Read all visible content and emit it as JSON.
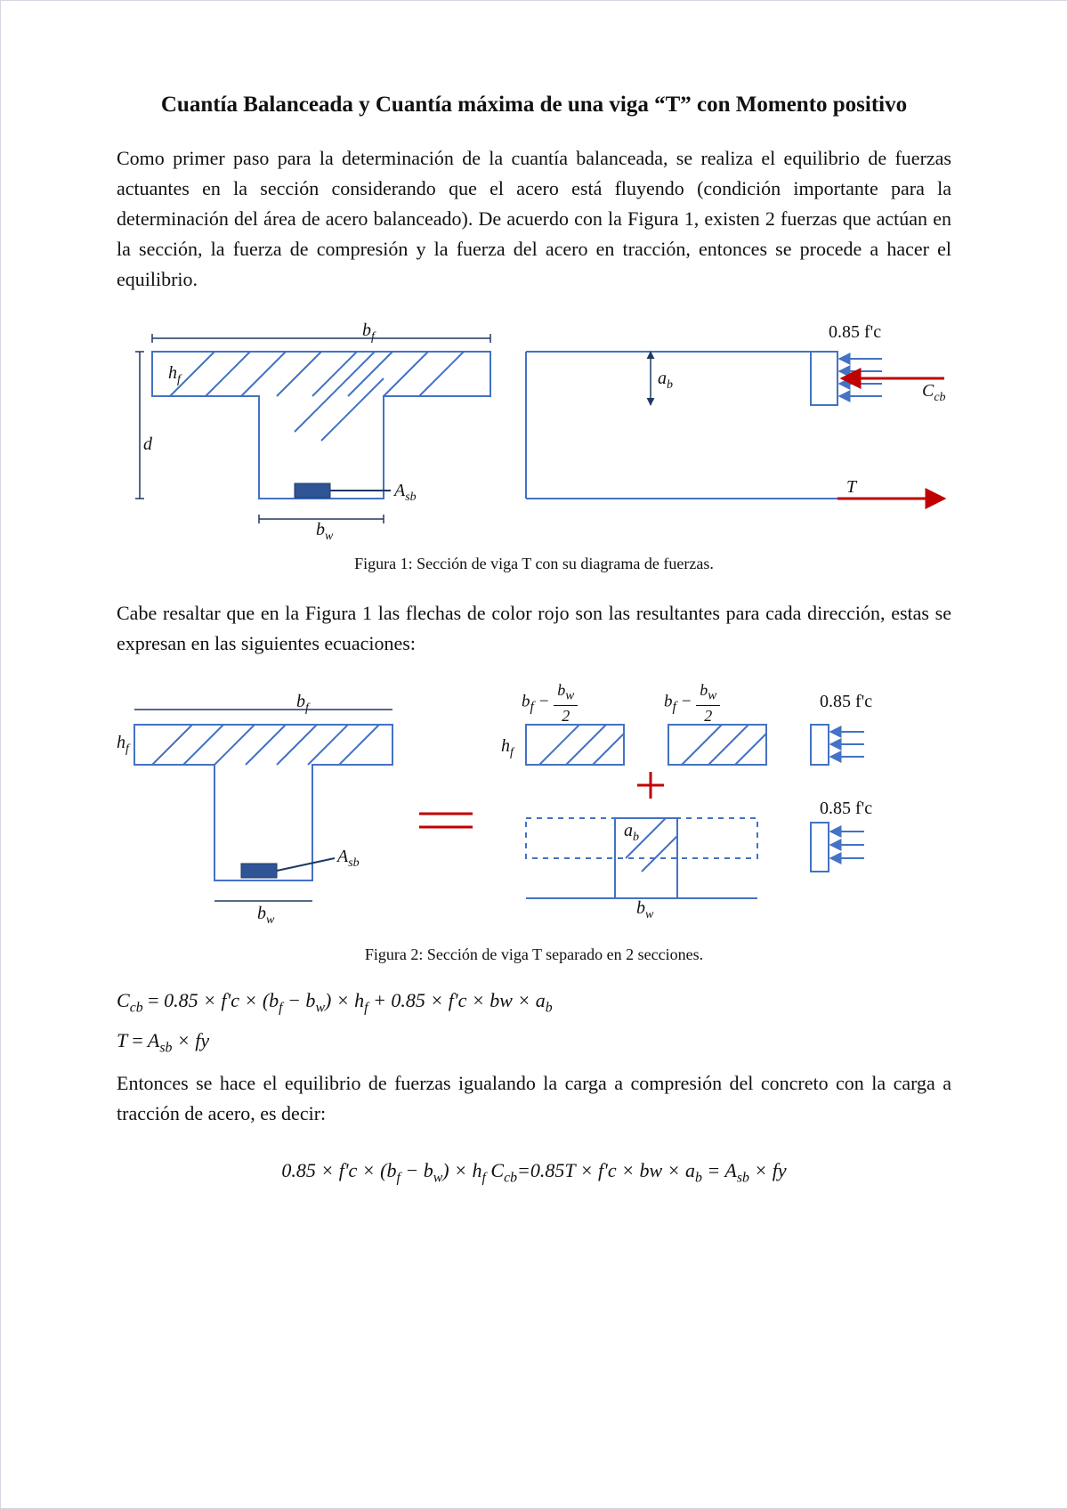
{
  "title": "Cuantía Balanceada y Cuantía máxima de una viga “T” con Momento positivo",
  "para1": "Como primer paso para la determinación de la cuantía balanceada, se realiza el equilibrio de fuerzas actuantes en la sección considerando que el acero está fluyendo (condición importante para la determinación del área de acero balanceado). De acuerdo con la Figura 1, existen 2 fuerzas que actúan en la sección, la fuerza de compresión y la fuerza del acero en tracción, entonces se procede a hacer el equilibrio.",
  "fig1": {
    "caption": "Figura 1: Sección de viga T con su diagrama de fuerzas.",
    "labels": {
      "bf": "b",
      "bf_sub": "f",
      "bw": "b",
      "bw_sub": "w",
      "hf": "h",
      "hf_sub": "f",
      "d": "d",
      "Asb": "A",
      "Asb_sub": "sb",
      "ab": "a",
      "ab_sub": "b",
      "top_right": "0.85 f'c",
      "Ccb": "C",
      "Ccb_sub": "cb",
      "T": "T"
    },
    "colors": {
      "outline": "#4472c4",
      "dim": "#1f3864",
      "red": "#c00000",
      "steel": "#2f5597"
    }
  },
  "para2": "Cabe resaltar que en la Figura 1 las flechas de color rojo son las resultantes para cada dirección, estas se expresan en las siguientes ecuaciones:",
  "fig2": {
    "caption": "Figura 2: Sección de viga T separado en 2 secciones.",
    "labels": {
      "bf": "b",
      "bf_sub": "f",
      "bw": "b",
      "bw_sub": "w",
      "hf": "h",
      "hf_sub": "f",
      "Asb": "A",
      "Asb_sub": "sb",
      "half_l_pre": "b",
      "half_l_pre_sub": "f",
      "half_l_num": "b",
      "half_l_num_sub": "w",
      "fc": "0.85 f'c",
      "ab": "a",
      "ab_sub": "b"
    }
  },
  "eq_Ccb_html": "C<sub>cb</sub> <span class='normal'>=</span> 0.85 × f'c × (b<sub>f</sub> − b<sub>w</sub>) × h<sub>f</sub> + 0.85 × f'c × bw × a<sub>b</sub>",
  "eq_T_html": "T <span class='normal'>=</span> A<sub>sb</sub> × fy",
  "para3": "Entonces se hace el equilibrio de fuerzas igualando la carga a compresión del concreto con la carga a tracción de acero, es decir:",
  "eq_final_html": "0.85 × f'c × (b<sub>f</sub> − b<sub>w</sub>) × h<sub>f</sub> C<sub>cb</sub>=0.85T × f'c × bw × a<sub>b</sub> = A<sub>sb</sub> × fy"
}
